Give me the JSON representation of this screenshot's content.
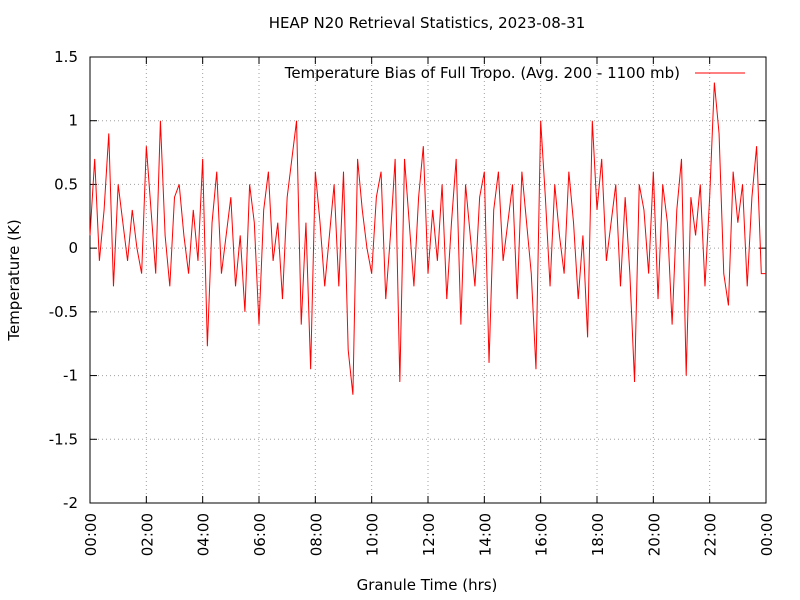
{
  "chart_data": {
    "type": "line",
    "title": "HEAP N20 Retrieval Statistics, 2023-08-31",
    "x_label": "Granule Time (hrs)",
    "y_label": "Temperature (K)",
    "x": [
      0,
      10,
      20,
      30,
      40,
      50,
      60,
      70,
      80,
      90,
      100,
      110,
      120,
      130,
      140,
      150,
      160,
      170,
      180,
      190,
      200,
      210,
      220,
      230,
      240,
      250,
      260,
      270,
      280,
      290,
      300,
      310,
      320,
      330,
      340,
      350,
      360,
      370,
      380,
      390,
      400,
      410,
      420,
      430,
      440,
      450,
      460,
      470,
      480,
      490,
      500,
      510,
      520,
      530,
      540,
      550,
      560,
      570,
      580,
      590,
      600,
      610,
      620,
      630,
      640,
      650,
      660,
      670,
      680,
      690,
      700,
      710,
      720,
      730,
      740,
      750,
      760,
      770,
      780,
      790,
      800,
      810,
      820,
      830,
      840,
      850,
      860,
      870,
      880,
      890,
      900,
      910,
      920,
      930,
      940,
      950,
      960,
      970,
      980,
      990,
      1000,
      1010,
      1020,
      1030,
      1040,
      1050,
      1060,
      1070,
      1080,
      1090,
      1100,
      1110,
      1120,
      1130,
      1140,
      1150,
      1160,
      1170,
      1180,
      1190,
      1200,
      1210,
      1220,
      1230,
      1240,
      1250,
      1260,
      1270,
      1280,
      1290,
      1300,
      1310,
      1320,
      1330,
      1340,
      1350,
      1360,
      1370,
      1380,
      1390,
      1400,
      1410,
      1420,
      1430,
      1440
    ],
    "series": [
      {
        "name": "Temperature Bias of Full Tropo. (Avg. 200 - 1100 mb)",
        "color": "#ff0000",
        "values": [
          0.1,
          0.7,
          -0.1,
          0.3,
          0.9,
          -0.3,
          0.5,
          0.2,
          -0.1,
          0.3,
          0.0,
          -0.2,
          0.8,
          0.3,
          -0.2,
          1.0,
          0.1,
          -0.3,
          0.4,
          0.5,
          0.1,
          -0.2,
          0.3,
          -0.1,
          0.7,
          -0.77,
          0.2,
          0.6,
          -0.2,
          0.1,
          0.4,
          -0.3,
          0.1,
          -0.5,
          0.5,
          0.2,
          -0.6,
          0.3,
          0.6,
          -0.1,
          0.2,
          -0.4,
          0.4,
          0.7,
          1.0,
          -0.6,
          0.2,
          -0.95,
          0.6,
          0.2,
          -0.3,
          0.1,
          0.5,
          -0.3,
          0.6,
          -0.8,
          -1.15,
          0.7,
          0.3,
          0.0,
          -0.2,
          0.4,
          0.6,
          -0.4,
          0.1,
          0.7,
          -1.05,
          0.7,
          0.2,
          -0.3,
          0.4,
          0.8,
          -0.2,
          0.3,
          -0.1,
          0.5,
          -0.4,
          0.2,
          0.7,
          -0.6,
          0.5,
          0.1,
          -0.3,
          0.4,
          0.6,
          -0.9,
          0.3,
          0.6,
          -0.1,
          0.2,
          0.5,
          -0.4,
          0.6,
          0.2,
          -0.2,
          -0.95,
          1.0,
          0.4,
          -0.3,
          0.5,
          0.1,
          -0.2,
          0.6,
          0.2,
          -0.4,
          0.1,
          -0.7,
          1.0,
          0.3,
          0.7,
          -0.1,
          0.2,
          0.5,
          -0.3,
          0.4,
          -0.2,
          -1.05,
          0.5,
          0.3,
          -0.2,
          0.6,
          -0.4,
          0.5,
          0.2,
          -0.6,
          0.3,
          0.7,
          -1.0,
          0.4,
          0.1,
          0.5,
          -0.3,
          0.4,
          1.3,
          0.9,
          -0.2,
          -0.45,
          0.6,
          0.2,
          0.5,
          -0.3,
          0.4,
          0.8,
          -0.2,
          -0.2
        ]
      }
    ],
    "xlim": [
      0,
      1440
    ],
    "xticks": [
      {
        "value": 0,
        "label": "00:00"
      },
      {
        "value": 120,
        "label": "02:00"
      },
      {
        "value": 240,
        "label": "04:00"
      },
      {
        "value": 360,
        "label": "06:00"
      },
      {
        "value": 480,
        "label": "08:00"
      },
      {
        "value": 600,
        "label": "10:00"
      },
      {
        "value": 720,
        "label": "12:00"
      },
      {
        "value": 840,
        "label": "14:00"
      },
      {
        "value": 960,
        "label": "16:00"
      },
      {
        "value": 1080,
        "label": "18:00"
      },
      {
        "value": 1200,
        "label": "20:00"
      },
      {
        "value": 1320,
        "label": "22:00"
      },
      {
        "value": 1440,
        "label": "00:00"
      }
    ],
    "ylim": [
      -2,
      1.5
    ],
    "yticks": [
      -2,
      -1.5,
      -1,
      -0.5,
      0,
      0.5,
      1,
      1.5
    ],
    "grid": true,
    "legend": "top-right"
  }
}
